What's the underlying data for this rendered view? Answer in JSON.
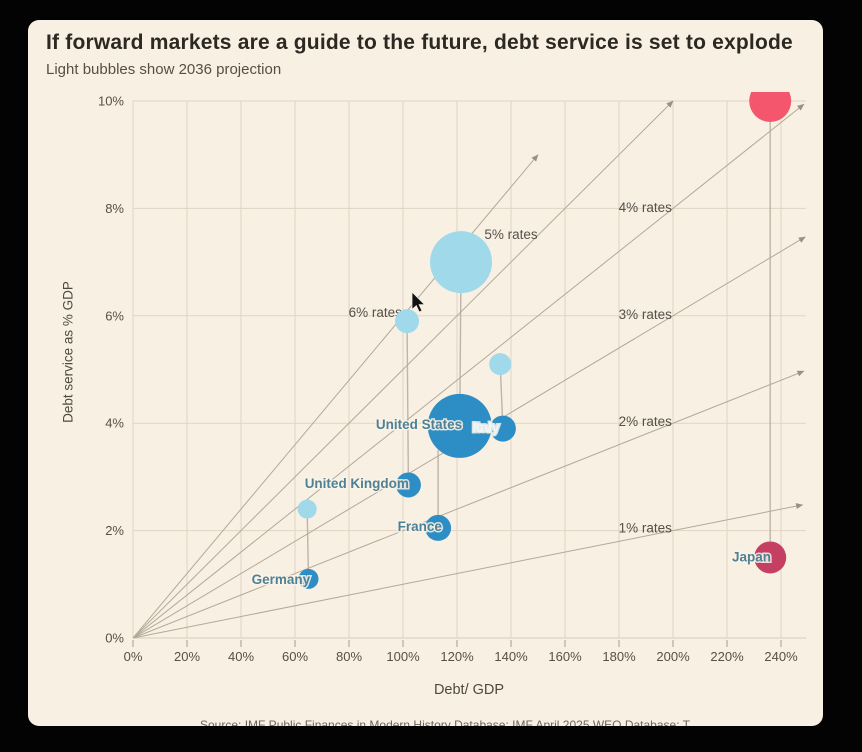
{
  "header": {
    "title": "If forward markets are a guide to the future, debt service is set to explode",
    "subtitle": "Light bubbles show 2036 projection"
  },
  "source": {
    "text": "Source: IMF Public Finances in Modern History Database; IMF April 2025 WEO Database; T"
  },
  "chart_data": {
    "type": "bubble",
    "title": "If forward markets are a guide to the future, debt service is set to explode",
    "subtitle": "Light bubbles show 2036 projection",
    "xlabel": "Debt/ GDP",
    "ylabel": "Debt service as % GDP",
    "xlim": [
      0,
      250
    ],
    "ylim": [
      0,
      10.2
    ],
    "grid": true,
    "x_tick_values": [
      0,
      20,
      40,
      60,
      80,
      100,
      120,
      140,
      160,
      180,
      200,
      220,
      240
    ],
    "x_tick_labels": [
      "0%",
      "20%",
      "40%",
      "60%",
      "80%",
      "100%",
      "120%",
      "140%",
      "160%",
      "180%",
      "200%",
      "220%",
      "240%"
    ],
    "y_tick_values": [
      0,
      2,
      4,
      6,
      8,
      10
    ],
    "y_tick_labels": [
      "0%",
      "2%",
      "4%",
      "6%",
      "8%",
      "10%"
    ],
    "rate_lines": [
      {
        "label": "1% rates",
        "rate_pct": 1,
        "end_debt_pct": 248,
        "label_pos": {
          "debt": 199.6,
          "service": 1.96,
          "anchor": "end"
        }
      },
      {
        "label": "2% rates",
        "rate_pct": 2,
        "end_debt_pct": 248.5,
        "label_pos": {
          "debt": 199.6,
          "service": 3.95,
          "anchor": "end"
        }
      },
      {
        "label": "3% rates",
        "rate_pct": 3,
        "end_debt_pct": 249,
        "label_pos": {
          "debt": 199.6,
          "service": 5.94,
          "anchor": "end"
        }
      },
      {
        "label": "4% rates",
        "rate_pct": 4,
        "end_debt_pct": 248.5,
        "label_pos": {
          "debt": 199.6,
          "service": 7.93,
          "anchor": "end"
        }
      },
      {
        "label": "5% rates",
        "rate_pct": 5,
        "end_debt_pct": 200,
        "label_pos": {
          "debt": 140.0,
          "service": 7.43,
          "anchor": "middle"
        }
      },
      {
        "label": "6% rates",
        "rate_pct": 6,
        "end_debt_pct": 150,
        "label_pos": {
          "debt": 99.6,
          "service": 5.98,
          "anchor": "end"
        }
      }
    ],
    "countries": [
      {
        "name": "Germany",
        "palette": "blue",
        "label_pos": {
          "debt": 65.6,
          "service": 1.01,
          "anchor": "end",
          "style": "teal"
        },
        "current": {
          "debt_pct": 65,
          "service_pct": 1.1,
          "radius": 10
        },
        "projection_2036": {
          "debt_pct": 64.5,
          "service_pct": 2.4,
          "radius": 9.5
        }
      },
      {
        "name": "United Kingdom",
        "palette": "blue",
        "label_pos": {
          "debt": 102.2,
          "service": 2.79,
          "anchor": "end",
          "style": "teal"
        },
        "current": {
          "debt_pct": 102,
          "service_pct": 2.85,
          "radius": 12.5
        },
        "projection_2036": {
          "debt_pct": 101.5,
          "service_pct": 5.9,
          "radius": 12
        }
      },
      {
        "name": "France",
        "palette": "blue",
        "label_pos": {
          "debt": 114.4,
          "service": 1.99,
          "anchor": "end",
          "style": "teal"
        },
        "current": {
          "debt_pct": 113,
          "service_pct": 2.05,
          "radius": 13
        },
        "projection_2036": {
          "debt_pct": 113,
          "service_pct": 3.5,
          "radius": 11,
          "hidden_behind_us_bubble": true
        }
      },
      {
        "name": "Italy",
        "palette": "blue",
        "label_pos": {
          "debt": 130.7,
          "service": 3.84,
          "anchor": "middle",
          "style": "white"
        },
        "current": {
          "debt_pct": 137,
          "service_pct": 3.9,
          "radius": 13
        },
        "projection_2036": {
          "debt_pct": 136,
          "service_pct": 5.1,
          "radius": 11
        }
      },
      {
        "name": "Japan",
        "palette": "red",
        "label_pos": {
          "debt": 236.3,
          "service": 1.42,
          "anchor": "end",
          "style": "teal"
        },
        "current": {
          "debt_pct": 236,
          "service_pct": 1.5,
          "radius": 16
        },
        "projection_2036": {
          "debt_pct": 236,
          "service_pct": 10.0,
          "radius": 21,
          "clipped_at_top": true
        }
      },
      {
        "name": "United States",
        "palette": "blue",
        "label_pos": {
          "debt": 121.9,
          "service": 3.89,
          "anchor": "end",
          "style": "teal"
        },
        "current": {
          "debt_pct": 121,
          "service_pct": 3.95,
          "radius": 32
        },
        "projection_2036": {
          "debt_pct": 121.5,
          "service_pct": 7.0,
          "radius": 31
        }
      }
    ],
    "colors": {
      "background": "#f8f0e3",
      "blue_current": "#2d8ec6",
      "blue_projection": "#9fd9ea",
      "red_current": "#c53f63",
      "red_projection": "#f4566d",
      "gridline": "#e0d5c4",
      "rate_line": "#b3a899",
      "stem": "#b5aa9d",
      "axis_text": "#565045",
      "country_label_teal": "#4e8195",
      "country_label_white": "#eef7fa"
    },
    "legend_position": "subtitle-note",
    "ui_cursor": {
      "x": 384,
      "y": 272
    }
  }
}
